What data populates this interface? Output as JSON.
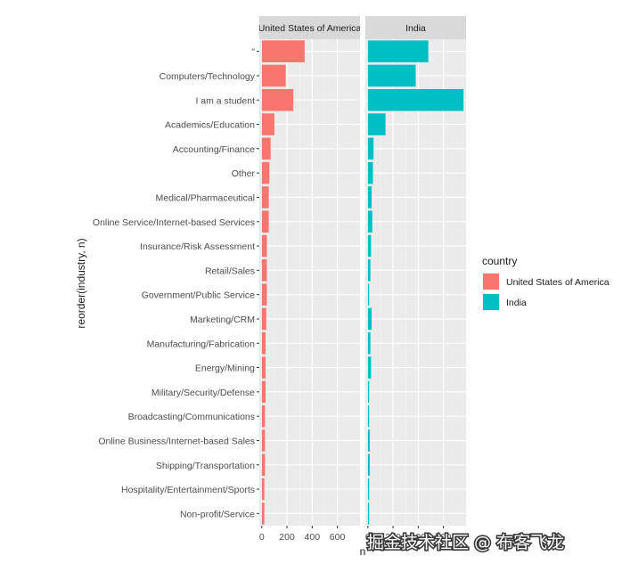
{
  "chart_data": {
    "type": "bar",
    "orientation": "horizontal",
    "ylabel": "reorder(industry, n)",
    "xlabel": "n",
    "categories": [
      "",
      "Computers/Technology",
      "I am a student",
      "Academics/Education",
      "Accounting/Finance",
      "Other",
      "Medical/Pharmaceutical",
      "Online Service/Internet-based Services",
      "Insurance/Risk Assessment",
      "Retail/Sales",
      "Government/Public Service",
      "Marketing/CRM",
      "Manufacturing/Fabrication",
      "Energy/Mining",
      "Military/Security/Defense",
      "Broadcasting/Communications",
      "Online Business/Internet-based Sales",
      "Shipping/Transportation",
      "Hospitality/Entertainment/Sports",
      "Non-profit/Service"
    ],
    "first_category_mark": "\"",
    "x_ticks": [
      0,
      200,
      400,
      600
    ],
    "xlim": [
      -20,
      780
    ],
    "legend": {
      "title": "country",
      "position": "right"
    },
    "series": [
      {
        "name": "United States of America",
        "color": "#F8766D",
        "values": [
          340,
          190,
          250,
          100,
          70,
          60,
          55,
          55,
          40,
          40,
          40,
          35,
          30,
          30,
          30,
          25,
          25,
          25,
          20,
          20
        ]
      },
      {
        "name": "India",
        "color": "#00BFC4",
        "values": [
          480,
          380,
          760,
          140,
          45,
          40,
          30,
          35,
          25,
          20,
          10,
          30,
          20,
          25,
          10,
          10,
          15,
          15,
          10,
          10
        ]
      }
    ],
    "grid": true
  },
  "watermark": "掘金技术社区 @ 布客飞龙"
}
